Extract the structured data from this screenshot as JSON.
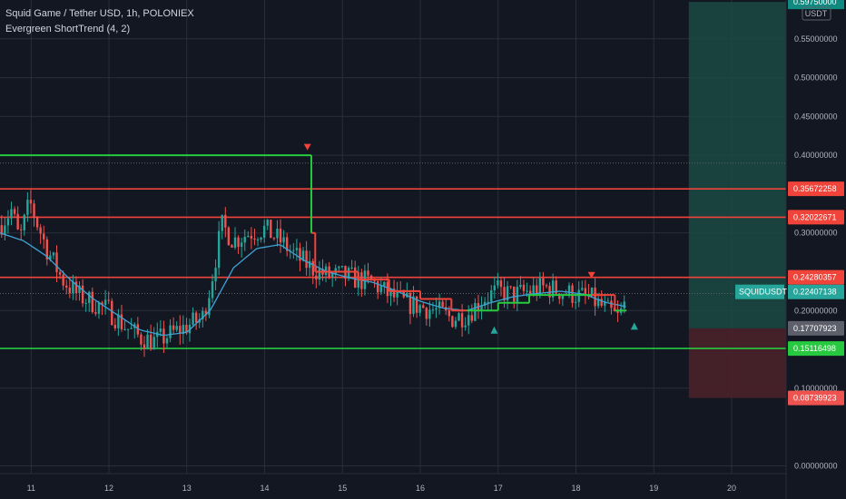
{
  "header": {
    "title": "Squid Game / Tether USD, 1h, POLONIEX",
    "indicator": "Evergreen ShortTrend (4, 2)"
  },
  "colors": {
    "background": "#131722",
    "up": "#26a69a",
    "down": "#ef5350",
    "grid": "#2a2e39",
    "ma": "#3fa2d4",
    "trend_green": "#27c93f",
    "trend_red": "#f0433a",
    "level_red": "#f0433a",
    "level_green": "#27c93f",
    "profit_zone": "#1b4a44",
    "loss_zone": "#4a2129",
    "axis_text": "#b2b5be"
  },
  "chart_data": {
    "type": "candlestick",
    "currency_label": "USDT",
    "ylim": [
      -0.01,
      0.6
    ],
    "xlim": [
      10.6,
      20.7
    ],
    "y_ticks": [
      {
        "value": 0.55,
        "label": "0.55000000"
      },
      {
        "value": 0.5,
        "label": "0.50000000"
      },
      {
        "value": 0.45,
        "label": "0.45000000"
      },
      {
        "value": 0.4,
        "label": "0.40000000"
      },
      {
        "value": 0.3,
        "label": "0.30000000"
      },
      {
        "value": 0.2,
        "label": "0.20000000"
      },
      {
        "value": 0.1,
        "label": "0.10000000"
      },
      {
        "value": 0.0,
        "label": "0.00000000"
      }
    ],
    "x_ticks": [
      {
        "value": 11,
        "label": "11"
      },
      {
        "value": 12,
        "label": "12"
      },
      {
        "value": 13,
        "label": "13"
      },
      {
        "value": 14,
        "label": "14"
      },
      {
        "value": 15,
        "label": "15"
      },
      {
        "value": 16,
        "label": "16"
      },
      {
        "value": 17,
        "label": "17"
      },
      {
        "value": 18,
        "label": "18"
      },
      {
        "value": 19,
        "label": "19"
      },
      {
        "value": 20,
        "label": "20"
      }
    ],
    "price_anchors": [
      [
        10.6,
        0.31
      ],
      [
        10.75,
        0.33
      ],
      [
        10.85,
        0.29
      ],
      [
        10.98,
        0.34
      ],
      [
        11.05,
        0.32
      ],
      [
        11.2,
        0.28
      ],
      [
        11.4,
        0.24
      ],
      [
        11.6,
        0.22
      ],
      [
        11.8,
        0.21
      ],
      [
        12.0,
        0.2
      ],
      [
        12.2,
        0.18
      ],
      [
        12.4,
        0.165
      ],
      [
        12.6,
        0.16
      ],
      [
        12.8,
        0.17
      ],
      [
        13.0,
        0.18
      ],
      [
        13.2,
        0.19
      ],
      [
        13.3,
        0.23
      ],
      [
        13.45,
        0.31
      ],
      [
        13.6,
        0.29
      ],
      [
        13.8,
        0.3
      ],
      [
        14.0,
        0.305
      ],
      [
        14.2,
        0.29
      ],
      [
        14.4,
        0.27
      ],
      [
        14.6,
        0.255
      ],
      [
        14.8,
        0.245
      ],
      [
        15.0,
        0.245
      ],
      [
        15.2,
        0.24
      ],
      [
        15.4,
        0.235
      ],
      [
        15.6,
        0.22
      ],
      [
        15.8,
        0.21
      ],
      [
        16.0,
        0.205
      ],
      [
        16.2,
        0.2
      ],
      [
        16.4,
        0.19
      ],
      [
        16.6,
        0.195
      ],
      [
        16.8,
        0.215
      ],
      [
        17.0,
        0.225
      ],
      [
        17.2,
        0.22
      ],
      [
        17.4,
        0.225
      ],
      [
        17.6,
        0.23
      ],
      [
        17.8,
        0.225
      ],
      [
        18.0,
        0.22
      ],
      [
        18.2,
        0.215
      ],
      [
        18.4,
        0.2
      ],
      [
        18.55,
        0.19
      ],
      [
        18.65,
        0.215
      ]
    ],
    "ma_anchors": [
      [
        10.6,
        0.3
      ],
      [
        10.9,
        0.29
      ],
      [
        11.2,
        0.27
      ],
      [
        11.5,
        0.24
      ],
      [
        11.8,
        0.215
      ],
      [
        12.1,
        0.195
      ],
      [
        12.4,
        0.175
      ],
      [
        12.7,
        0.168
      ],
      [
        13.0,
        0.172
      ],
      [
        13.3,
        0.2
      ],
      [
        13.6,
        0.255
      ],
      [
        13.9,
        0.28
      ],
      [
        14.2,
        0.285
      ],
      [
        14.5,
        0.265
      ],
      [
        14.8,
        0.25
      ],
      [
        15.1,
        0.242
      ],
      [
        15.4,
        0.236
      ],
      [
        15.7,
        0.225
      ],
      [
        16.0,
        0.212
      ],
      [
        16.3,
        0.203
      ],
      [
        16.6,
        0.2
      ],
      [
        16.9,
        0.21
      ],
      [
        17.2,
        0.218
      ],
      [
        17.5,
        0.222
      ],
      [
        17.8,
        0.225
      ],
      [
        18.1,
        0.221
      ],
      [
        18.4,
        0.21
      ],
      [
        18.65,
        0.205
      ]
    ],
    "trend_line": [
      {
        "from": 10.6,
        "to": 14.6,
        "value": 0.4,
        "state": "up"
      },
      {
        "from": 14.6,
        "to": 14.65,
        "value": 0.3,
        "state": "down"
      },
      {
        "from": 14.65,
        "to": 15.2,
        "value": 0.25,
        "state": "down"
      },
      {
        "from": 15.2,
        "to": 15.6,
        "value": 0.24,
        "state": "down"
      },
      {
        "from": 15.6,
        "to": 16.0,
        "value": 0.225,
        "state": "down"
      },
      {
        "from": 16.0,
        "to": 16.4,
        "value": 0.215,
        "state": "down"
      },
      {
        "from": 16.4,
        "to": 16.6,
        "value": 0.2,
        "state": "down"
      },
      {
        "from": 16.6,
        "to": 17.0,
        "value": 0.2,
        "state": "up"
      },
      {
        "from": 17.0,
        "to": 17.4,
        "value": 0.21,
        "state": "up"
      },
      {
        "from": 17.4,
        "to": 18.2,
        "value": 0.22,
        "state": "up"
      },
      {
        "from": 18.2,
        "to": 18.5,
        "value": 0.22,
        "state": "down"
      },
      {
        "from": 18.5,
        "to": 18.65,
        "value": 0.2,
        "state": "up"
      }
    ],
    "signals": [
      {
        "type": "sell",
        "x": 14.55,
        "y": 0.41
      },
      {
        "type": "buy",
        "x": 16.95,
        "y": 0.175
      },
      {
        "type": "sell",
        "x": 18.2,
        "y": 0.245
      },
      {
        "type": "buy",
        "x": 18.75,
        "y": 0.18
      }
    ],
    "horizontal_levels": [
      {
        "value": 0.35672258,
        "label": "0.35672258",
        "color": "#f0433a"
      },
      {
        "value": 0.32022671,
        "label": "0.32022671",
        "color": "#f0433a"
      },
      {
        "value": 0.24280357,
        "label": "0.24280357",
        "color": "#f0433a"
      },
      {
        "value": 0.15116498,
        "label": "0.15116498",
        "color": "#27c93f"
      }
    ],
    "price_labels": [
      {
        "value": 0.22407138,
        "label": "0.22407138",
        "tag": "SQUIDUSDT",
        "color": "#26a69a"
      },
      {
        "value": 0.17707923,
        "label": "0.17707923",
        "color": "#5d606b"
      },
      {
        "value": 0.08739923,
        "label": "0.08739923",
        "color": "#ef5350"
      },
      {
        "value": 0.5975,
        "label": "0.59750000",
        "color": "#0e8a80"
      }
    ],
    "position": {
      "x_from": 19.45,
      "x_to": 20.7,
      "entry": 0.17707923,
      "target": 0.5975,
      "stop": 0.08739923
    },
    "dotted_levels": [
      0.39,
      0.222
    ]
  }
}
